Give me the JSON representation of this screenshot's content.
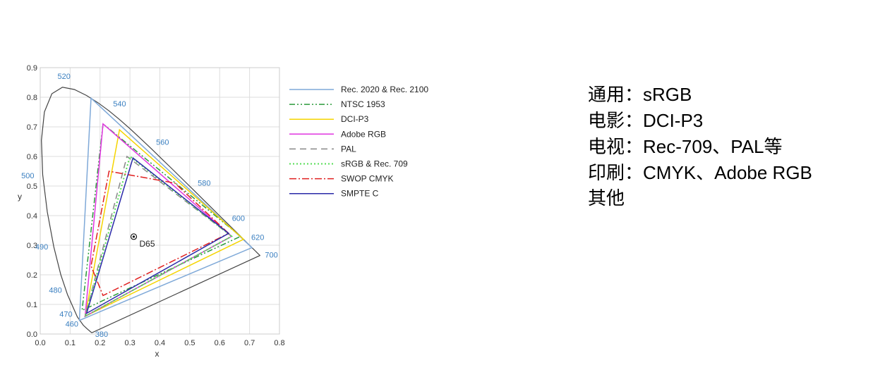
{
  "chart_data": {
    "type": "line",
    "xlabel": "x",
    "ylabel": "y",
    "xlim": [
      0,
      0.8
    ],
    "ylim": [
      0,
      0.9
    ],
    "x_ticks": [
      "0.0",
      "0.1",
      "0.2",
      "0.3",
      "0.4",
      "0.5",
      "0.6",
      "0.7",
      "0.8"
    ],
    "y_ticks": [
      "0.0",
      "0.1",
      "0.2",
      "0.3",
      "0.4",
      "0.5",
      "0.6",
      "0.7",
      "0.8",
      "0.9"
    ],
    "grid": true,
    "legend_position": "right",
    "spectral_locus": [
      [
        0.1741,
        0.005
      ],
      [
        0.1738,
        0.0049
      ],
      [
        0.1736,
        0.0049
      ],
      [
        0.1726,
        0.0048
      ],
      [
        0.1714,
        0.0051
      ],
      [
        0.1689,
        0.0069
      ],
      [
        0.1644,
        0.0109
      ],
      [
        0.1566,
        0.0177
      ],
      [
        0.144,
        0.0297
      ],
      [
        0.1241,
        0.0578
      ],
      [
        0.0913,
        0.1327
      ],
      [
        0.0687,
        0.2007
      ],
      [
        0.0454,
        0.295
      ],
      [
        0.0235,
        0.4127
      ],
      [
        0.0082,
        0.5384
      ],
      [
        0.0039,
        0.6548
      ],
      [
        0.0139,
        0.7502
      ],
      [
        0.0389,
        0.812
      ],
      [
        0.0743,
        0.8338
      ],
      [
        0.1142,
        0.8262
      ],
      [
        0.1547,
        0.8059
      ],
      [
        0.1929,
        0.7816
      ],
      [
        0.2296,
        0.7543
      ],
      [
        0.2658,
        0.7243
      ],
      [
        0.3016,
        0.6923
      ],
      [
        0.3373,
        0.6589
      ],
      [
        0.3731,
        0.6245
      ],
      [
        0.4087,
        0.5896
      ],
      [
        0.4441,
        0.5547
      ],
      [
        0.4788,
        0.5202
      ],
      [
        0.5125,
        0.4866
      ],
      [
        0.5448,
        0.4544
      ],
      [
        0.5752,
        0.4242
      ],
      [
        0.6029,
        0.3965
      ],
      [
        0.627,
        0.3725
      ],
      [
        0.6482,
        0.3514
      ],
      [
        0.6658,
        0.334
      ],
      [
        0.6801,
        0.3197
      ],
      [
        0.6915,
        0.3083
      ],
      [
        0.7006,
        0.2993
      ],
      [
        0.7079,
        0.292
      ],
      [
        0.714,
        0.2859
      ],
      [
        0.719,
        0.2809
      ],
      [
        0.723,
        0.277
      ],
      [
        0.726,
        0.274
      ],
      [
        0.7283,
        0.2717
      ],
      [
        0.73,
        0.27
      ],
      [
        0.7311,
        0.2689
      ],
      [
        0.732,
        0.268
      ],
      [
        0.7327,
        0.2673
      ],
      [
        0.7334,
        0.2666
      ],
      [
        0.734,
        0.266
      ],
      [
        0.7344,
        0.2656
      ],
      [
        0.7346,
        0.2654
      ],
      [
        0.7347,
        0.2653
      ]
    ],
    "wavelength_labels": [
      {
        "label": "380",
        "x": 0.1741,
        "y": 0.005
      },
      {
        "label": "460",
        "x": 0.144,
        "y": 0.0297
      },
      {
        "label": "470",
        "x": 0.1241,
        "y": 0.0578
      },
      {
        "label": "480",
        "x": 0.0913,
        "y": 0.1327
      },
      {
        "label": "490",
        "x": 0.0454,
        "y": 0.295
      },
      {
        "label": "500",
        "x": 0.0082,
        "y": 0.5384
      },
      {
        "label": "520",
        "x": 0.0743,
        "y": 0.8338
      },
      {
        "label": "540",
        "x": 0.2296,
        "y": 0.7543
      },
      {
        "label": "560",
        "x": 0.3731,
        "y": 0.6245
      },
      {
        "label": "580",
        "x": 0.5125,
        "y": 0.4866
      },
      {
        "label": "600",
        "x": 0.627,
        "y": 0.3725
      },
      {
        "label": "620",
        "x": 0.6915,
        "y": 0.3083
      },
      {
        "label": "700",
        "x": 0.7347,
        "y": 0.2653
      }
    ],
    "series": [
      {
        "name": "Rec. 2020 & Rec. 2100",
        "color": "#7fa9d8",
        "dash": "",
        "width": 1.5,
        "points": [
          [
            0.708,
            0.292
          ],
          [
            0.17,
            0.797
          ],
          [
            0.131,
            0.046
          ]
        ]
      },
      {
        "name": "NTSC 1953",
        "color": "#2a9a3a",
        "dash": "8,3,2,3,2,3",
        "width": 1.5,
        "points": [
          [
            0.67,
            0.33
          ],
          [
            0.21,
            0.71
          ],
          [
            0.14,
            0.08
          ]
        ]
      },
      {
        "name": "DCI-P3",
        "color": "#f5d400",
        "dash": "",
        "width": 1.5,
        "points": [
          [
            0.68,
            0.32
          ],
          [
            0.265,
            0.69
          ],
          [
            0.15,
            0.06
          ]
        ]
      },
      {
        "name": "Adobe RGB",
        "color": "#e035e0",
        "dash": "",
        "width": 1.5,
        "points": [
          [
            0.64,
            0.33
          ],
          [
            0.21,
            0.71
          ],
          [
            0.15,
            0.06
          ]
        ]
      },
      {
        "name": "PAL",
        "color": "#888888",
        "dash": "9,6",
        "width": 1.5,
        "points": [
          [
            0.64,
            0.33
          ],
          [
            0.29,
            0.6
          ],
          [
            0.15,
            0.06
          ]
        ]
      },
      {
        "name": "sRGB & Rec. 709",
        "color": "#55dd55",
        "dash": "2,3",
        "width": 2,
        "points": [
          [
            0.64,
            0.33
          ],
          [
            0.3,
            0.6
          ],
          [
            0.15,
            0.06
          ]
        ]
      },
      {
        "name": "SWOP CMYK",
        "color": "#e02020",
        "dash": "10,3,2,3",
        "width": 1.5,
        "points": [
          [
            0.63,
            0.34
          ],
          [
            0.45,
            0.51
          ],
          [
            0.23,
            0.55
          ],
          [
            0.17,
            0.23
          ],
          [
            0.21,
            0.13
          ],
          [
            0.63,
            0.34
          ]
        ]
      },
      {
        "name": "SMPTE C",
        "color": "#2a2aa8",
        "dash": "",
        "width": 1.5,
        "points": [
          [
            0.63,
            0.34
          ],
          [
            0.31,
            0.595
          ],
          [
            0.155,
            0.07
          ]
        ]
      }
    ],
    "annotations": [
      {
        "label": "D65",
        "x": 0.3127,
        "y": 0.329
      }
    ]
  },
  "usage_notes": [
    {
      "category": "通用",
      "value": "sRGB"
    },
    {
      "category": "电影",
      "value": "DCI-P3"
    },
    {
      "category": "电视",
      "value": "Rec-709、PAL等"
    },
    {
      "category": "印刷",
      "value": "CMYK、Adobe RGB"
    },
    {
      "category": "其他",
      "value": ""
    }
  ]
}
